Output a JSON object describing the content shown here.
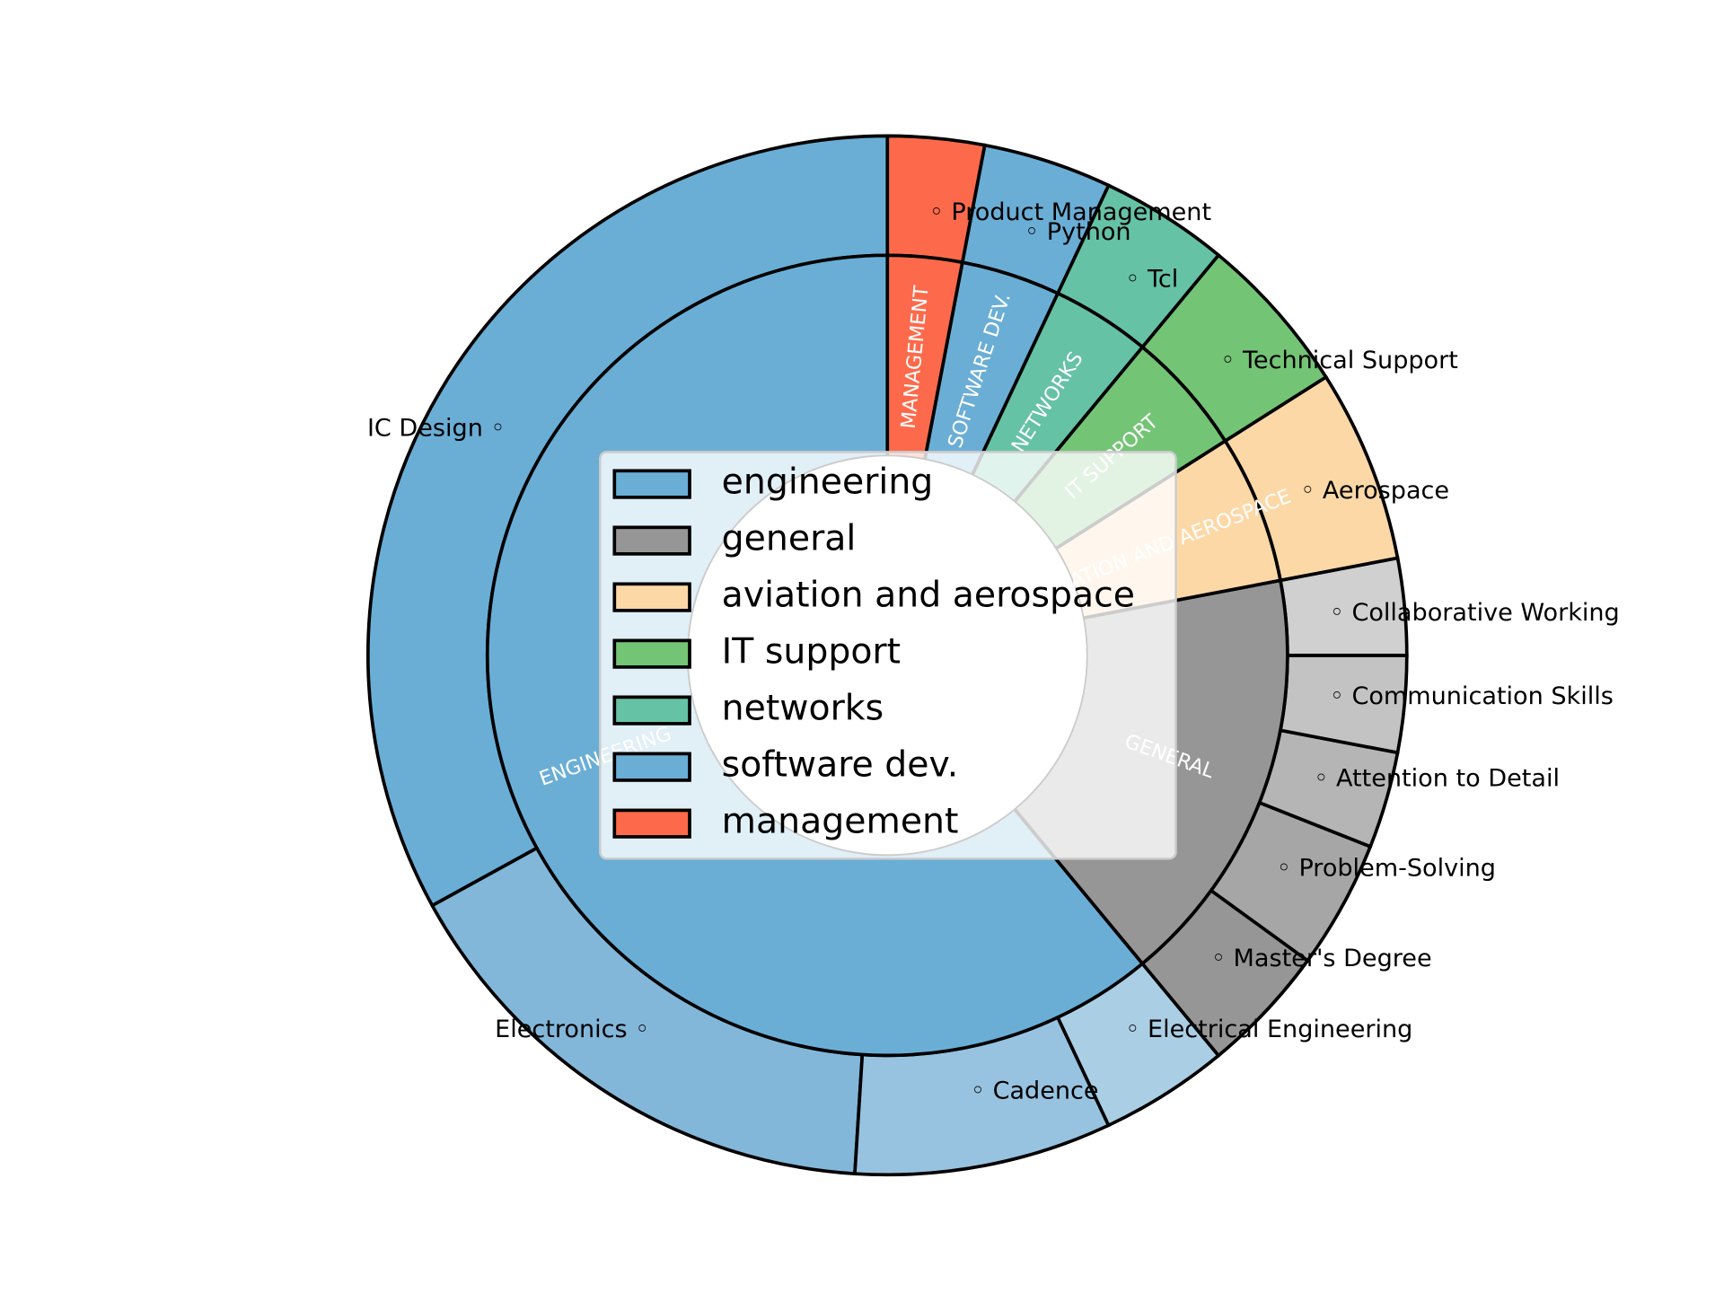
{
  "chart_data": {
    "type": "pie",
    "subtype": "nested-donut",
    "title": "",
    "start_angle_deg": 90,
    "direction": "counterclockwise",
    "legend": {
      "placement": "center",
      "entries": [
        "engineering",
        "general",
        "aviation and aerospace",
        "IT support",
        "networks",
        "software dev.",
        "management"
      ]
    },
    "inner": [
      {
        "label": "ENGINEERING",
        "legend": "engineering",
        "value": 61,
        "color": "#6aaed6"
      },
      {
        "label": "GENERAL",
        "legend": "general",
        "value": 17,
        "color": "#969696"
      },
      {
        "label": "AVIATION AND AEROSPACE",
        "legend": "aviation and aerospace",
        "value": 6,
        "color": "#fdd8a7"
      },
      {
        "label": "IT SUPPORT",
        "legend": "IT support",
        "value": 5,
        "color": "#74c476"
      },
      {
        "label": "NETWORKS",
        "legend": "networks",
        "value": 4,
        "color": "#66c2a4"
      },
      {
        "label": "SOFTWARE DEV.",
        "legend": "software dev.",
        "value": 4,
        "color": "#6aaed6"
      },
      {
        "label": "MANAGEMENT",
        "legend": "management",
        "value": 3,
        "color": "#fd6a4b"
      }
    ],
    "outer": [
      {
        "label": "IC Design",
        "value": 33,
        "color": "#6aaed6"
      },
      {
        "label": "Electronics",
        "value": 16,
        "color": "#82b7d9"
      },
      {
        "label": "Cadence",
        "value": 8,
        "color": "#97c3e0"
      },
      {
        "label": "Electrical Engineering",
        "value": 4,
        "color": "#aacfe5"
      },
      {
        "label": "Master's Degree",
        "value": 4,
        "color": "#969696"
      },
      {
        "label": "Problem-Solving",
        "value": 4,
        "color": "#a6a6a6"
      },
      {
        "label": "Attention to Detail",
        "value": 3,
        "color": "#b5b5b5"
      },
      {
        "label": "Communication Skills",
        "value": 3,
        "color": "#c3c3c3"
      },
      {
        "label": "Collaborative Working",
        "value": 3,
        "color": "#d0d0d0"
      },
      {
        "label": "Aerospace",
        "value": 6,
        "color": "#fdd8a7"
      },
      {
        "label": "Technical Support",
        "value": 5,
        "color": "#74c476"
      },
      {
        "label": "Tcl",
        "value": 4,
        "color": "#66c2a4"
      },
      {
        "label": "Python",
        "value": 4,
        "color": "#6aaed6"
      },
      {
        "label": "Product Management",
        "value": 3,
        "color": "#fd6a4b"
      }
    ]
  }
}
